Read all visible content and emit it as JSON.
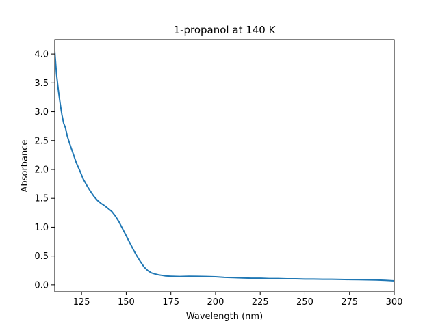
{
  "chart_data": {
    "type": "line",
    "title": "1-propanol at 140 K",
    "xlabel": "Wavelength (nm)",
    "ylabel": "Absorbance",
    "xlim": [
      110,
      300
    ],
    "ylim": [
      -0.12,
      4.25
    ],
    "xticks": [
      125,
      150,
      175,
      200,
      225,
      250,
      275,
      300
    ],
    "yticks": [
      0.0,
      0.5,
      1.0,
      1.5,
      2.0,
      2.5,
      3.0,
      3.5,
      4.0
    ],
    "xtick_labels": [
      "125",
      "150",
      "175",
      "200",
      "225",
      "250",
      "275",
      "300"
    ],
    "ytick_labels": [
      "0.0",
      "0.5",
      "1.0",
      "1.5",
      "2.0",
      "2.5",
      "3.0",
      "3.5",
      "4.0"
    ],
    "grid": false,
    "series": [
      {
        "color": "#1f77b4",
        "x": [
          110,
          111,
          112,
          113,
          114,
          115,
          116,
          117,
          118,
          120,
          122,
          124,
          126,
          128,
          130,
          132,
          134,
          136,
          138,
          140,
          142,
          144,
          146,
          148,
          150,
          152,
          154,
          156,
          158,
          160,
          162,
          164,
          166,
          168,
          170,
          172,
          175,
          180,
          185,
          190,
          195,
          200,
          205,
          210,
          215,
          220,
          225,
          230,
          235,
          240,
          245,
          250,
          255,
          260,
          265,
          270,
          275,
          280,
          285,
          290,
          295,
          300
        ],
        "y": [
          4.05,
          3.65,
          3.38,
          3.15,
          2.95,
          2.8,
          2.72,
          2.58,
          2.48,
          2.3,
          2.12,
          1.98,
          1.83,
          1.72,
          1.62,
          1.53,
          1.46,
          1.41,
          1.37,
          1.32,
          1.27,
          1.19,
          1.09,
          0.97,
          0.85,
          0.73,
          0.61,
          0.5,
          0.4,
          0.31,
          0.25,
          0.21,
          0.19,
          0.175,
          0.165,
          0.155,
          0.15,
          0.145,
          0.15,
          0.148,
          0.145,
          0.14,
          0.13,
          0.125,
          0.12,
          0.115,
          0.115,
          0.11,
          0.11,
          0.105,
          0.105,
          0.1,
          0.1,
          0.098,
          0.098,
          0.095,
          0.092,
          0.09,
          0.087,
          0.085,
          0.078,
          0.07
        ]
      }
    ]
  }
}
